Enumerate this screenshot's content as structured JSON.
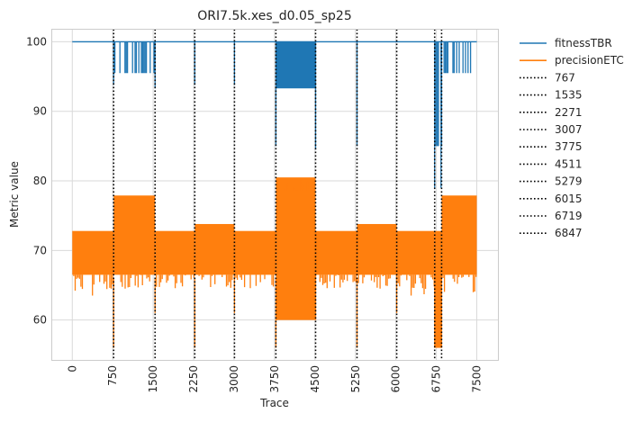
{
  "chart_data": {
    "type": "line",
    "title": "ORI7.5k.xes_d0.05_sp25",
    "xlabel": "Trace",
    "ylabel": "Metric value",
    "xlim": [
      -380,
      7900
    ],
    "ylim": [
      54.2,
      101.8
    ],
    "xticks": [
      0,
      750,
      1500,
      2250,
      3000,
      3750,
      4500,
      5250,
      6000,
      6750,
      7500
    ],
    "xtick_labels": [
      "0",
      "750",
      "1500",
      "2250",
      "3000",
      "3750",
      "4500",
      "5250",
      "6000",
      "6750",
      "7500"
    ],
    "yticks": [
      60,
      70,
      80,
      90,
      100
    ],
    "ytick_labels": [
      "60",
      "70",
      "80",
      "90",
      "100"
    ],
    "grid": true,
    "legend_position": "outside-right",
    "series": [
      {
        "name": "fitnessTBR",
        "color": "#1f77b4",
        "baseline": 100,
        "disturbed_segments": [
          {
            "from": 767,
            "to": 1535,
            "low": 92.5,
            "typical_low": 95.5
          },
          {
            "from": 3775,
            "to": 4511,
            "low": 93.3,
            "typical_low": 93.3
          },
          {
            "from": 6719,
            "to": 6847,
            "low": 79.0,
            "typical_low": 85.0
          },
          {
            "from": 6847,
            "to": 7500,
            "low": 92.5,
            "typical_low": 95.5
          }
        ],
        "dips": [
          {
            "x": 767,
            "y": 93.8
          },
          {
            "x": 1535,
            "y": 93.3
          },
          {
            "x": 2271,
            "y": 93.8
          },
          {
            "x": 3007,
            "y": 93.8
          },
          {
            "x": 3775,
            "y": 85.0
          },
          {
            "x": 4511,
            "y": 84.5
          },
          {
            "x": 5279,
            "y": 85.0
          },
          {
            "x": 6719,
            "y": 79.0
          },
          {
            "x": 6847,
            "y": 85.0
          }
        ]
      },
      {
        "name": "precisionETC",
        "color": "#ff7f0e",
        "segments": [
          {
            "from": 0,
            "to": 767,
            "high": 72.8,
            "typical_low": 66.5,
            "low": 63.5
          },
          {
            "from": 767,
            "to": 1535,
            "high": 77.9,
            "typical_low": 66.5,
            "low": 64.5
          },
          {
            "from": 1535,
            "to": 2271,
            "high": 72.8,
            "typical_low": 66.5,
            "low": 64.5
          },
          {
            "from": 2271,
            "to": 3007,
            "high": 73.8,
            "typical_low": 66.5,
            "low": 64.5
          },
          {
            "from": 3007,
            "to": 3775,
            "high": 72.8,
            "typical_low": 66.5,
            "low": 64.5
          },
          {
            "from": 3775,
            "to": 4511,
            "high": 80.5,
            "typical_low": 60.0,
            "low": 60.0
          },
          {
            "from": 4511,
            "to": 5279,
            "high": 72.8,
            "typical_low": 66.5,
            "low": 64.5
          },
          {
            "from": 5279,
            "to": 6015,
            "high": 73.8,
            "typical_low": 66.5,
            "low": 64.5
          },
          {
            "from": 6015,
            "to": 6719,
            "high": 72.8,
            "typical_low": 66.5,
            "low": 63.5
          },
          {
            "from": 6719,
            "to": 6847,
            "high": 72.8,
            "typical_low": 56.0,
            "low": 56.0
          },
          {
            "from": 6847,
            "to": 7500,
            "high": 77.9,
            "typical_low": 66.5,
            "low": 63.5
          }
        ],
        "dips": [
          {
            "x": 767,
            "y": 56.0
          },
          {
            "x": 1535,
            "y": 61.0
          },
          {
            "x": 2271,
            "y": 56.0
          },
          {
            "x": 3007,
            "y": 61.0
          },
          {
            "x": 3775,
            "y": 56.0
          },
          {
            "x": 4511,
            "y": 60.0
          },
          {
            "x": 5279,
            "y": 56.0
          },
          {
            "x": 6015,
            "y": 61.0
          },
          {
            "x": 6719,
            "y": 56.0
          },
          {
            "x": 6847,
            "y": 56.0
          }
        ]
      }
    ],
    "vlines": [
      {
        "label": "767",
        "x": 767
      },
      {
        "label": "1535",
        "x": 1535
      },
      {
        "label": "2271",
        "x": 2271
      },
      {
        "label": "3007",
        "x": 3007
      },
      {
        "label": "3775",
        "x": 3775
      },
      {
        "label": "4511",
        "x": 4511
      },
      {
        "label": "5279",
        "x": 5279
      },
      {
        "label": "6015",
        "x": 6015
      },
      {
        "label": "6719",
        "x": 6719
      },
      {
        "label": "6847",
        "x": 6847
      }
    ]
  }
}
